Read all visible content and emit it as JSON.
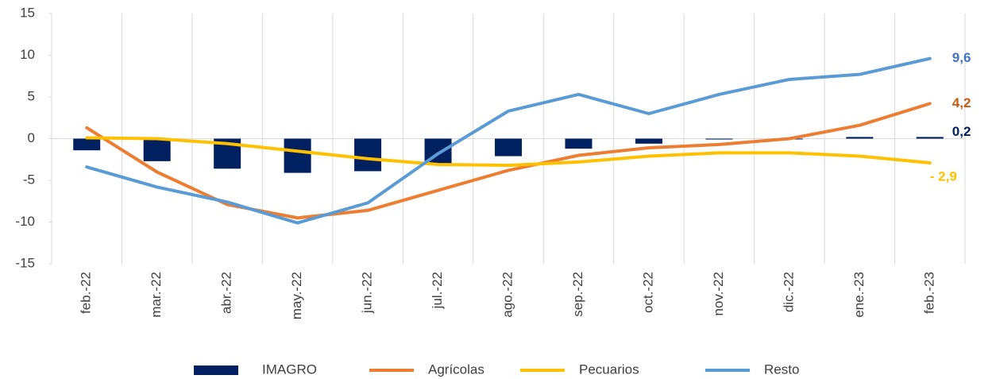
{
  "chart_data": {
    "type": "bar-line",
    "categories": [
      "feb.-22",
      "mar.-22",
      "abr.-22",
      "may.-22",
      "jun.-22",
      "jul.-22",
      "ago.-22",
      "sep.-22",
      "oct.-22",
      "nov.-22",
      "dic.-22",
      "ene.-23",
      "feb.-23"
    ],
    "series": [
      {
        "name": "IMAGRO",
        "type": "bar",
        "color": "#002060",
        "values": [
          -1.4,
          -2.7,
          -3.6,
          -4.1,
          -3.9,
          -3.0,
          -2.1,
          -1.2,
          -0.6,
          -0.1,
          0.0,
          0.2,
          0.2
        ],
        "value_labels": [
          null,
          null,
          null,
          null,
          null,
          null,
          null,
          null,
          null,
          null,
          null,
          null,
          "0,2"
        ]
      },
      {
        "name": "Agrícolas",
        "type": "line",
        "color": "#ED7D31",
        "values": [
          1.3,
          -4.0,
          -7.9,
          -9.5,
          -8.6,
          -6.2,
          -3.8,
          -2.0,
          -1.1,
          -0.7,
          0.0,
          1.6,
          4.2
        ],
        "value_labels": [
          null,
          null,
          null,
          null,
          null,
          null,
          null,
          null,
          null,
          null,
          null,
          null,
          "4,2"
        ]
      },
      {
        "name": "Pecuarios",
        "type": "line",
        "color": "#FFC000",
        "values": [
          0.1,
          0.0,
          -0.6,
          -1.5,
          -2.4,
          -3.1,
          -3.2,
          -2.8,
          -2.1,
          -1.7,
          -1.7,
          -2.1,
          -2.9
        ],
        "value_labels": [
          null,
          null,
          null,
          null,
          null,
          null,
          null,
          null,
          null,
          null,
          null,
          null,
          "- 2,9"
        ]
      },
      {
        "name": "Resto",
        "type": "line",
        "color": "#5B9BD5",
        "values": [
          -3.4,
          -5.8,
          -7.6,
          -10.1,
          -7.7,
          -1.8,
          3.3,
          5.3,
          3.0,
          5.3,
          7.1,
          7.7,
          9.6
        ],
        "value_labels": [
          null,
          null,
          null,
          null,
          null,
          null,
          null,
          null,
          null,
          null,
          null,
          null,
          "9,6"
        ]
      }
    ],
    "ylim": [
      -15,
      15
    ],
    "yticks": [
      -15,
      -10,
      -5,
      0,
      5,
      10,
      15
    ],
    "grid": "vertical"
  }
}
